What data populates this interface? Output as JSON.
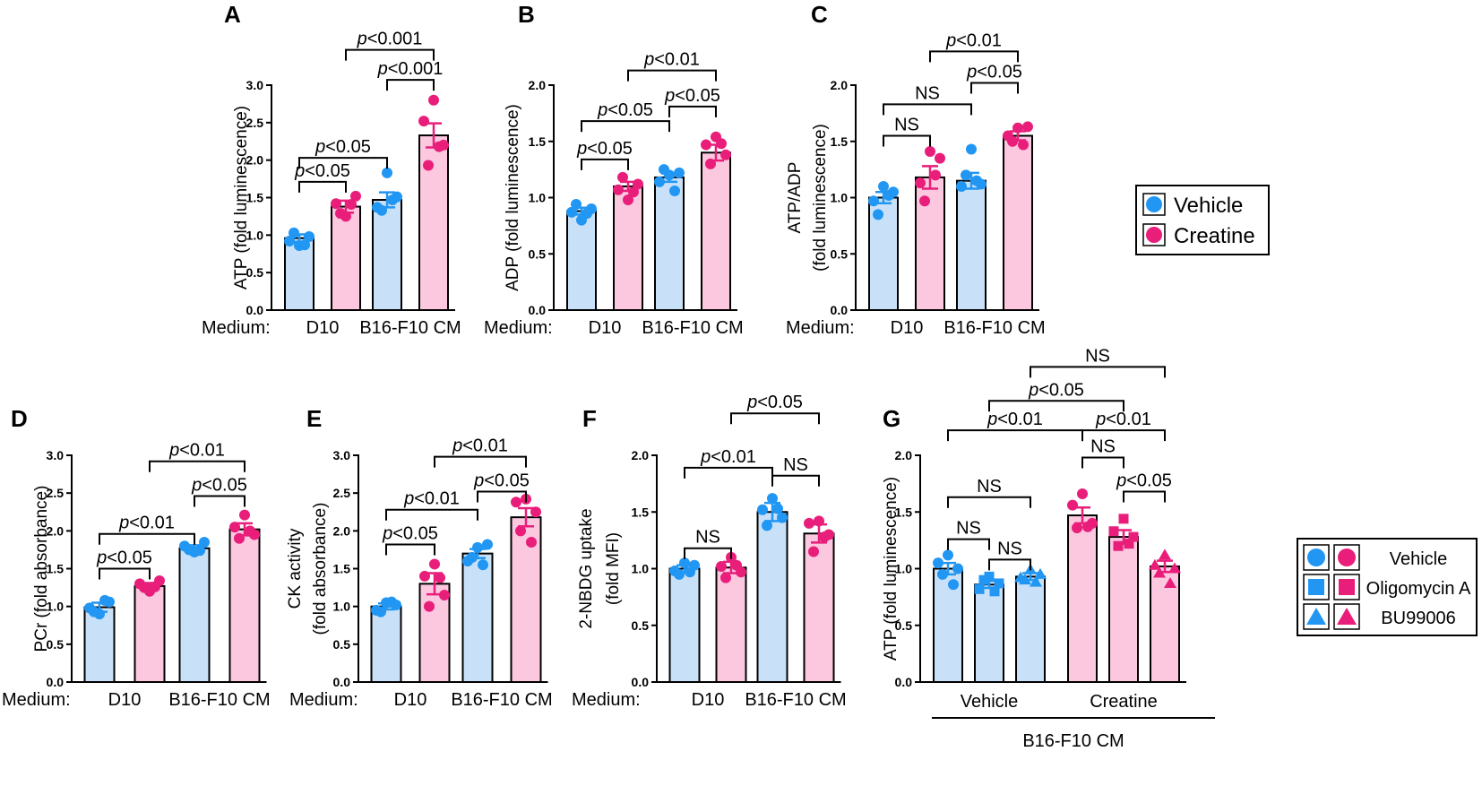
{
  "colors": {
    "vehicle_fill": "#c9e1f8",
    "vehicle_dot": "#2196f3",
    "creatine_fill": "#fcc8e0",
    "creatine_dot": "#e91e7a"
  },
  "legend_top": {
    "items": [
      {
        "label": "Vehicle",
        "group": "vehicle"
      },
      {
        "label": "Creatine",
        "group": "creatine"
      }
    ]
  },
  "legend_g": {
    "items": [
      {
        "label": "Vehicle",
        "shape": "circle"
      },
      {
        "label": "Oligomycin A",
        "shape": "square"
      },
      {
        "label": "BU99006",
        "shape": "triangle"
      }
    ]
  },
  "chart_data": [
    {
      "panel": "A",
      "type": "bar",
      "ylabel": "ATP (fold luminescence)",
      "ylim": [
        0,
        3
      ],
      "yticks": [
        "0.0",
        "0.5",
        "1.0",
        "1.5",
        "2.0",
        "2.5",
        "3.0"
      ],
      "medium_label": "Medium:",
      "groups": [
        {
          "label": "D10",
          "bars": [
            0,
            1
          ]
        },
        {
          "label": "B16-F10 CM",
          "bars": [
            2,
            3
          ]
        }
      ],
      "bars": [
        {
          "treatment": "Vehicle",
          "group": "vehicle",
          "mean": 0.96,
          "sem": 0.05,
          "points": [
            0.86,
            0.92,
            0.98,
            1.03,
            0.87
          ]
        },
        {
          "treatment": "Creatine",
          "group": "creatine",
          "mean": 1.38,
          "sem": 0.08,
          "points": [
            1.25,
            1.42,
            1.52,
            1.29,
            1.41
          ]
        },
        {
          "treatment": "Vehicle",
          "group": "vehicle",
          "mean": 1.47,
          "sem": 0.1,
          "points": [
            1.83,
            1.37,
            1.51,
            1.33,
            1.47
          ]
        },
        {
          "treatment": "Creatine",
          "group": "creatine",
          "mean": 2.33,
          "sem": 0.16,
          "points": [
            2.8,
            2.52,
            2.2,
            1.93,
            2.18
          ]
        }
      ],
      "comparisons": [
        {
          "from": 0,
          "to": 1,
          "label": "p<0.05",
          "value": 1.71,
          "row": 0
        },
        {
          "from": 0,
          "to": 2,
          "label": "p<0.05",
          "value": 2.03,
          "row": 0
        },
        {
          "from": 2,
          "to": 3,
          "label": "p<0.001",
          "value": 3.07,
          "row": 0
        },
        {
          "from": 1,
          "to": 3,
          "label": "p<0.001",
          "value": 3.47,
          "row": 0
        }
      ]
    },
    {
      "panel": "B",
      "type": "bar",
      "ylabel": "ADP (fold luminescence)",
      "ylim": [
        0,
        2
      ],
      "yticks": [
        "0.0",
        "0.5",
        "1.0",
        "1.5",
        "2.0"
      ],
      "medium_label": "Medium:",
      "groups": [
        {
          "label": "D10",
          "bars": [
            0,
            1
          ]
        },
        {
          "label": "B16-F10 CM",
          "bars": [
            2,
            3
          ]
        }
      ],
      "bars": [
        {
          "treatment": "Vehicle",
          "group": "vehicle",
          "mean": 0.88,
          "sem": 0.03,
          "points": [
            0.8,
            0.87,
            0.9,
            0.94,
            0.86
          ]
        },
        {
          "treatment": "Creatine",
          "group": "creatine",
          "mean": 1.1,
          "sem": 0.04,
          "points": [
            0.98,
            1.07,
            1.12,
            1.18,
            1.05
          ]
        },
        {
          "treatment": "Vehicle",
          "group": "vehicle",
          "mean": 1.18,
          "sem": 0.04,
          "points": [
            1.2,
            1.14,
            1.22,
            1.25,
            1.06
          ]
        },
        {
          "treatment": "Creatine",
          "group": "creatine",
          "mean": 1.4,
          "sem": 0.07,
          "points": [
            1.54,
            1.47,
            1.38,
            1.3,
            1.48
          ]
        }
      ],
      "comparisons": [
        {
          "from": 0,
          "to": 1,
          "label": "p<0.05",
          "value": 1.34,
          "row": 0
        },
        {
          "from": 0,
          "to": 2,
          "label": "p<0.05",
          "value": 1.68,
          "row": 0
        },
        {
          "from": 2,
          "to": 3,
          "label": "p<0.05",
          "value": 1.81,
          "row": 0
        },
        {
          "from": 1,
          "to": 3,
          "label": "p<0.01",
          "value": 2.13,
          "row": 0
        }
      ]
    },
    {
      "panel": "C",
      "type": "bar",
      "ylabel": "ATP/ADP",
      "ylabel2": "(fold luminescence)",
      "ylim": [
        0,
        2
      ],
      "yticks": [
        "0.0",
        "0.5",
        "1.0",
        "1.5",
        "2.0"
      ],
      "medium_label": "Medium:",
      "groups": [
        {
          "label": "D10",
          "bars": [
            0,
            1
          ]
        },
        {
          "label": "B16-F10 CM",
          "bars": [
            2,
            3
          ]
        }
      ],
      "bars": [
        {
          "treatment": "Vehicle",
          "group": "vehicle",
          "mean": 1.0,
          "sem": 0.05,
          "points": [
            1.1,
            0.97,
            1.05,
            0.85,
            1.02
          ]
        },
        {
          "treatment": "Creatine",
          "group": "creatine",
          "mean": 1.18,
          "sem": 0.1,
          "points": [
            1.41,
            1.13,
            1.35,
            0.97,
            1.2
          ]
        },
        {
          "treatment": "Vehicle",
          "group": "vehicle",
          "mean": 1.15,
          "sem": 0.07,
          "points": [
            1.43,
            1.1,
            1.12,
            1.2,
            1.15
          ]
        },
        {
          "treatment": "Creatine",
          "group": "creatine",
          "mean": 1.55,
          "sem": 0.04,
          "points": [
            1.62,
            1.55,
            1.63,
            1.5,
            1.47
          ]
        }
      ],
      "comparisons": [
        {
          "from": 0,
          "to": 1,
          "label": "NS",
          "value": 1.55,
          "row": 0
        },
        {
          "from": 0,
          "to": 2,
          "label": "NS",
          "value": 1.83,
          "row": 0
        },
        {
          "from": 2,
          "to": 3,
          "label": "p<0.05",
          "value": 2.02,
          "row": 0
        },
        {
          "from": 1,
          "to": 3,
          "label": "p<0.01",
          "value": 2.3,
          "row": 0
        }
      ]
    },
    {
      "panel": "D",
      "type": "bar",
      "ylabel": "PCr (fold absorbance)",
      "ylim": [
        0,
        3
      ],
      "yticks": [
        "0.0",
        "0.5",
        "1.0",
        "1.5",
        "2.0",
        "2.5",
        "3.0"
      ],
      "medium_label": "Medium:",
      "groups": [
        {
          "label": "D10",
          "bars": [
            0,
            1
          ]
        },
        {
          "label": "B16-F10 CM",
          "bars": [
            2,
            3
          ]
        }
      ],
      "bars": [
        {
          "treatment": "Vehicle",
          "group": "vehicle",
          "mean": 0.99,
          "sem": 0.06,
          "points": [
            0.9,
            0.98,
            1.06,
            0.93,
            1.08
          ]
        },
        {
          "treatment": "Creatine",
          "group": "creatine",
          "mean": 1.27,
          "sem": 0.04,
          "points": [
            1.2,
            1.3,
            1.34,
            1.25,
            1.26
          ]
        },
        {
          "treatment": "Vehicle",
          "group": "vehicle",
          "mean": 1.77,
          "sem": 0.04,
          "points": [
            1.72,
            1.8,
            1.85,
            1.75,
            1.74
          ]
        },
        {
          "treatment": "Creatine",
          "group": "creatine",
          "mean": 2.02,
          "sem": 0.08,
          "points": [
            2.21,
            2.05,
            1.95,
            1.9,
            2.0
          ]
        }
      ],
      "comparisons": [
        {
          "from": 0,
          "to": 1,
          "label": "p<0.05",
          "value": 1.5,
          "row": 0
        },
        {
          "from": 0,
          "to": 2,
          "label": "p<0.01",
          "value": 1.96,
          "row": 0
        },
        {
          "from": 2,
          "to": 3,
          "label": "p<0.05",
          "value": 2.46,
          "row": 0
        },
        {
          "from": 1,
          "to": 3,
          "label": "p<0.01",
          "value": 2.92,
          "row": 0
        }
      ]
    },
    {
      "panel": "E",
      "type": "bar",
      "ylabel": "CK activity",
      "ylabel2": "(fold absorbance)",
      "ylim": [
        0,
        3
      ],
      "yticks": [
        "0.0",
        "0.5",
        "1.0",
        "1.5",
        "2.0",
        "2.5",
        "3.0"
      ],
      "medium_label": "Medium:",
      "groups": [
        {
          "label": "D10",
          "bars": [
            0,
            1
          ]
        },
        {
          "label": "B16-F10 CM",
          "bars": [
            2,
            3
          ]
        }
      ],
      "bars": [
        {
          "treatment": "Vehicle",
          "group": "vehicle",
          "mean": 1.0,
          "sem": 0.04,
          "points": [
            1.05,
            0.95,
            1.02,
            0.93,
            1.06
          ]
        },
        {
          "treatment": "Creatine",
          "group": "creatine",
          "mean": 1.3,
          "sem": 0.14,
          "points": [
            1.56,
            1.4,
            1.15,
            1.0,
            1.38
          ]
        },
        {
          "treatment": "Vehicle",
          "group": "vehicle",
          "mean": 1.7,
          "sem": 0.06,
          "points": [
            1.78,
            1.6,
            1.82,
            1.65,
            1.55
          ]
        },
        {
          "treatment": "Creatine",
          "group": "creatine",
          "mean": 2.18,
          "sem": 0.12,
          "points": [
            2.42,
            2.38,
            2.25,
            2.0,
            1.85
          ]
        }
      ],
      "comparisons": [
        {
          "from": 0,
          "to": 1,
          "label": "p<0.05",
          "value": 1.82,
          "row": 0
        },
        {
          "from": 0,
          "to": 2,
          "label": "p<0.01",
          "value": 2.28,
          "row": 0
        },
        {
          "from": 2,
          "to": 3,
          "label": "p<0.05",
          "value": 2.52,
          "row": 0
        },
        {
          "from": 1,
          "to": 3,
          "label": "p<0.01",
          "value": 2.98,
          "row": 0
        }
      ]
    },
    {
      "panel": "F",
      "type": "bar",
      "ylabel": "2-NBDG uptake",
      "ylabel2": "(fold MFI)",
      "ylim": [
        0,
        2
      ],
      "yticks": [
        "0.0",
        "0.5",
        "1.0",
        "1.5",
        "2.0"
      ],
      "medium_label": "Medium:",
      "groups": [
        {
          "label": "D10",
          "bars": [
            0,
            1
          ]
        },
        {
          "label": "B16-F10 CM",
          "bars": [
            2,
            3
          ]
        }
      ],
      "bars": [
        {
          "treatment": "Vehicle",
          "group": "vehicle",
          "mean": 1.0,
          "sem": 0.03,
          "points": [
            1.05,
            0.98,
            1.03,
            0.95,
            0.97
          ]
        },
        {
          "treatment": "Creatine",
          "group": "creatine",
          "mean": 1.01,
          "sem": 0.05,
          "points": [
            1.1,
            1.02,
            0.97,
            0.92,
            1.03
          ]
        },
        {
          "treatment": "Vehicle",
          "group": "vehicle",
          "mean": 1.5,
          "sem": 0.08,
          "points": [
            1.62,
            1.52,
            1.45,
            1.38,
            1.53
          ]
        },
        {
          "treatment": "Creatine",
          "group": "creatine",
          "mean": 1.31,
          "sem": 0.08,
          "points": [
            1.42,
            1.4,
            1.3,
            1.15,
            1.28
          ]
        }
      ],
      "comparisons": [
        {
          "from": 0,
          "to": 1,
          "label": "NS",
          "value": 1.18,
          "row": 0
        },
        {
          "from": 2,
          "to": 3,
          "label": "NS",
          "value": 1.82,
          "row": 0
        },
        {
          "from": 0,
          "to": 2,
          "label": "p<0.01",
          "value": 1.89,
          "row": 0
        },
        {
          "from": 1,
          "to": 3,
          "label": "p<0.05",
          "value": 2.37,
          "row": 0
        }
      ]
    },
    {
      "panel": "G",
      "type": "bar",
      "ylabel": "ATP (fold luminescence)",
      "ylim": [
        0,
        2
      ],
      "yticks": [
        "0.0",
        "0.5",
        "1.0",
        "1.5",
        "2.0"
      ],
      "groups": [
        {
          "label": "Vehicle",
          "bars": [
            0,
            1,
            2
          ]
        },
        {
          "label": "Creatine",
          "bars": [
            3,
            4,
            5
          ]
        }
      ],
      "bottom_label": "B16-F10 CM",
      "bars": [
        {
          "treatment": "Vehicle",
          "group": "vehicle",
          "shape": "circle",
          "mean": 1.0,
          "sem": 0.05,
          "points": [
            1.12,
            1.05,
            1.0,
            0.95,
            0.86
          ]
        },
        {
          "treatment": "Oligomycin A",
          "group": "vehicle",
          "shape": "square",
          "mean": 0.86,
          "sem": 0.03,
          "points": [
            0.93,
            0.82,
            0.87,
            0.9,
            0.8
          ]
        },
        {
          "treatment": "BU99006",
          "group": "vehicle",
          "shape": "triangle",
          "mean": 0.93,
          "sem": 0.03,
          "points": [
            0.99,
            0.92,
            0.95,
            0.9,
            0.88
          ]
        },
        {
          "treatment": "Vehicle",
          "group": "creatine",
          "shape": "circle",
          "mean": 1.47,
          "sem": 0.07,
          "points": [
            1.66,
            1.56,
            1.4,
            1.36,
            1.37
          ]
        },
        {
          "treatment": "Oligomycin A",
          "group": "creatine",
          "shape": "square",
          "mean": 1.28,
          "sem": 0.06,
          "points": [
            1.44,
            1.33,
            1.28,
            1.2,
            1.22
          ]
        },
        {
          "treatment": "BU99006",
          "group": "creatine",
          "shape": "triangle",
          "mean": 1.02,
          "sem": 0.05,
          "points": [
            1.12,
            1.03,
            1.0,
            0.96,
            0.87
          ]
        }
      ],
      "comparisons": [
        {
          "from": 0,
          "to": 1,
          "label": "NS",
          "value": 1.26,
          "row": 0
        },
        {
          "from": 1,
          "to": 2,
          "label": "NS",
          "value": 1.08,
          "row": 0
        },
        {
          "from": 0,
          "to": 2,
          "label": "NS",
          "value": 1.63,
          "row": 0
        },
        {
          "from": 4,
          "to": 5,
          "label": "p<0.05",
          "value": 1.68,
          "row": 0
        },
        {
          "from": 3,
          "to": 4,
          "label": "NS",
          "value": 1.98,
          "row": 0
        },
        {
          "from": 0,
          "to": 3,
          "label": "p<0.01",
          "value": 2.22,
          "row": 0
        },
        {
          "from": 3,
          "to": 5,
          "label": "p<0.01",
          "value": 2.22,
          "row": 0
        },
        {
          "from": 1,
          "to": 4,
          "label": "p<0.05",
          "value": 2.48,
          "row": 0
        },
        {
          "from": 2,
          "to": 5,
          "label": "NS",
          "value": 2.78,
          "row": 0
        }
      ]
    }
  ]
}
